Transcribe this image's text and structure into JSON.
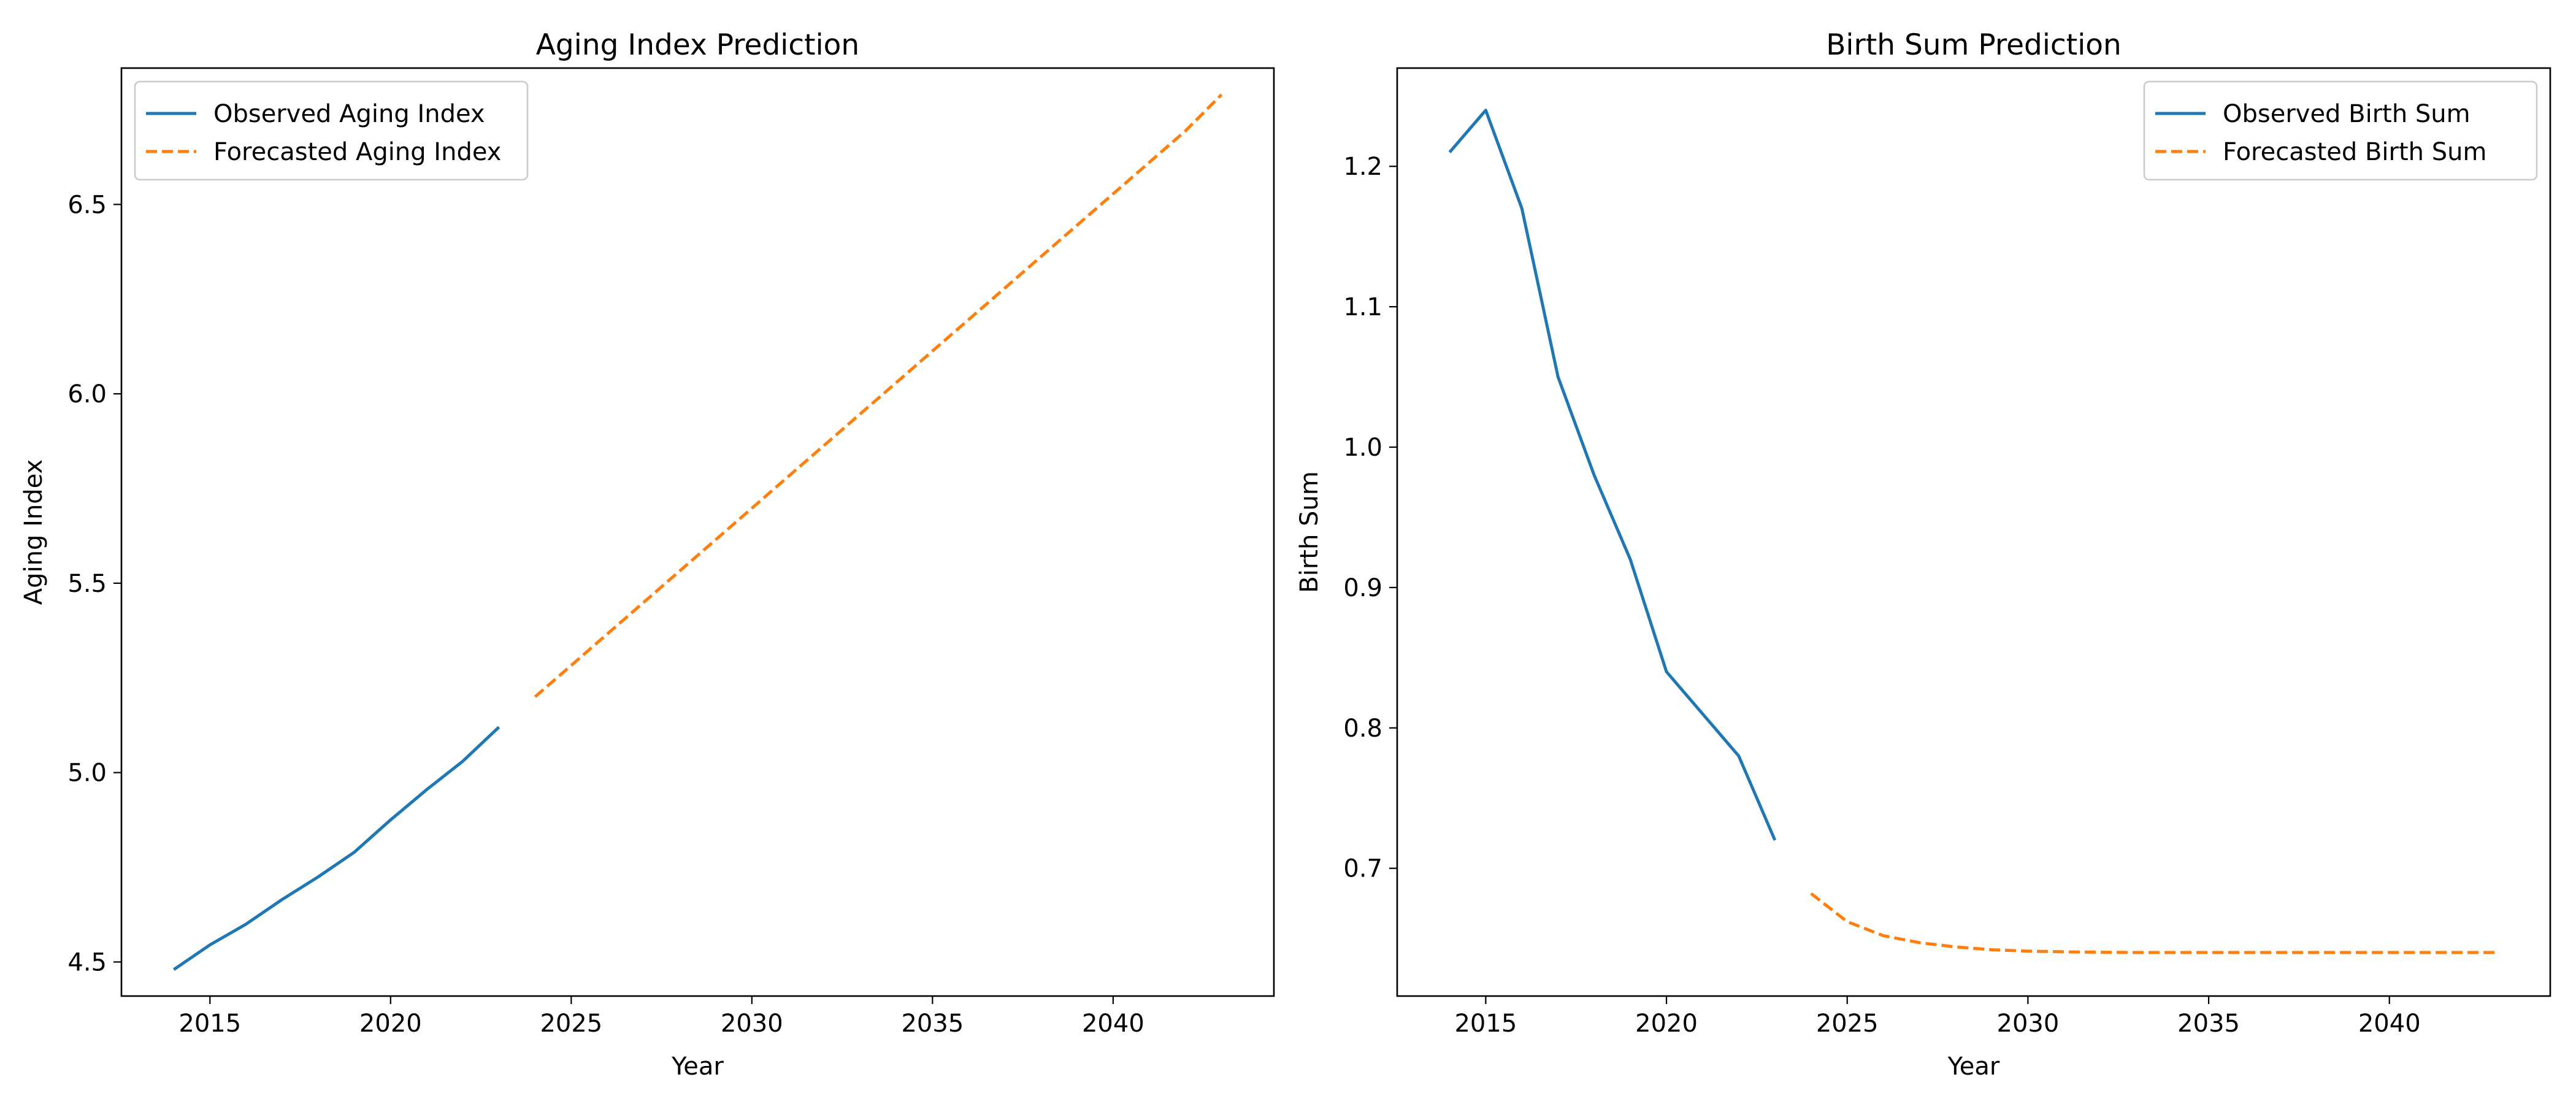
{
  "colors": {
    "observed": "#1f77b4",
    "forecast": "#ff7f0e"
  },
  "chart_data": [
    {
      "type": "line",
      "title": "Aging Index Prediction",
      "xlabel": "Year",
      "ylabel": "Aging Index",
      "xlim": [
        2012.55,
        2044.45
      ],
      "ylim": [
        4.41,
        6.86
      ],
      "xticks": [
        2015,
        2020,
        2025,
        2030,
        2035,
        2040
      ],
      "yticks": [
        4.5,
        5.0,
        5.5,
        6.0,
        6.5
      ],
      "ytick_labels": [
        "4.5",
        "5.0",
        "5.5",
        "6.0",
        "6.5"
      ],
      "grid": false,
      "legend_position": "upper left",
      "series": [
        {
          "name": "Observed Aging Index",
          "style": "solid",
          "x": [
            2014,
            2015,
            2016,
            2017,
            2018,
            2019,
            2020,
            2021,
            2022,
            2023
          ],
          "y": [
            4.48,
            4.545,
            4.6,
            4.665,
            4.725,
            4.79,
            4.875,
            4.955,
            5.03,
            5.12
          ]
        },
        {
          "name": "Forecasted Aging Index",
          "style": "dashed",
          "x": [
            2024,
            2025,
            2026,
            2027,
            2028,
            2029,
            2030,
            2031,
            2032,
            2033,
            2034,
            2035,
            2036,
            2037,
            2038,
            2039,
            2040,
            2041,
            2042,
            2043
          ],
          "y": [
            5.2,
            5.283,
            5.366,
            5.449,
            5.532,
            5.615,
            5.698,
            5.781,
            5.864,
            5.947,
            6.03,
            6.113,
            6.196,
            6.279,
            6.362,
            6.445,
            6.528,
            6.611,
            6.694,
            6.79
          ]
        }
      ]
    },
    {
      "type": "line",
      "title": "Birth Sum Prediction",
      "xlabel": "Year",
      "ylabel": "Birth Sum",
      "xlim": [
        2012.55,
        2044.45
      ],
      "ylim": [
        0.609,
        1.27
      ],
      "xticks": [
        2015,
        2020,
        2025,
        2030,
        2035,
        2040
      ],
      "yticks": [
        0.7,
        0.8,
        0.9,
        1.0,
        1.1,
        1.2
      ],
      "ytick_labels": [
        "0.7",
        "0.8",
        "0.9",
        "1.0",
        "1.1",
        "1.2"
      ],
      "grid": false,
      "legend_position": "upper right",
      "series": [
        {
          "name": "Observed Birth Sum",
          "style": "solid",
          "x": [
            2014,
            2015,
            2016,
            2017,
            2018,
            2019,
            2020,
            2021,
            2022,
            2023
          ],
          "y": [
            1.21,
            1.24,
            1.17,
            1.05,
            0.98,
            0.92,
            0.84,
            0.81,
            0.78,
            0.72
          ]
        },
        {
          "name": "Forecasted Birth Sum",
          "style": "dashed",
          "x": [
            2024,
            2025,
            2026,
            2027,
            2028,
            2029,
            2030,
            2031,
            2032,
            2033,
            2034,
            2035,
            2036,
            2037,
            2038,
            2039,
            2040,
            2041,
            2042,
            2043
          ],
          "y": [
            0.682,
            0.662,
            0.652,
            0.647,
            0.644,
            0.642,
            0.641,
            0.6405,
            0.6402,
            0.64,
            0.64,
            0.64,
            0.64,
            0.64,
            0.64,
            0.64,
            0.64,
            0.64,
            0.64,
            0.64
          ]
        }
      ]
    }
  ]
}
